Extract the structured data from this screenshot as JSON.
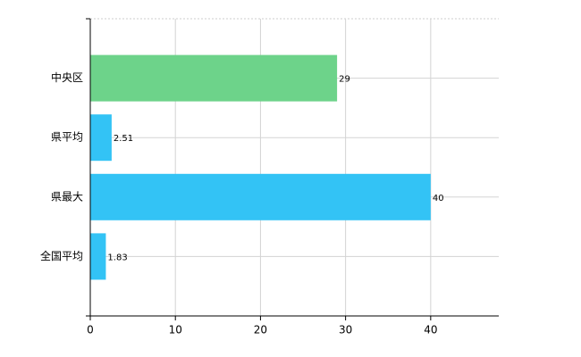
{
  "chart_data": {
    "type": "bar",
    "orientation": "horizontal",
    "categories": [
      "中央区",
      "県平均",
      "県最大",
      "全国平均"
    ],
    "values": [
      29,
      2.51,
      40,
      1.83
    ],
    "colors": [
      "#6dd38a",
      "#33c3f5",
      "#33c3f5",
      "#33c3f5"
    ],
    "xlim": [
      0,
      48
    ],
    "xticks": [
      0,
      10,
      20,
      30,
      40
    ],
    "grid": true
  }
}
